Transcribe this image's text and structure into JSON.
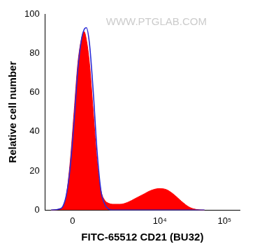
{
  "chart_data": {
    "type": "line",
    "x_label": "FITC-65512 CD21 (BU32)",
    "y_label": "Relative cell number",
    "annotations": [
      "WWW.PTGLAB.COM"
    ],
    "log": "x",
    "grid": false,
    "xlim": [
      -800,
      170000
    ],
    "xticks": [
      0,
      {
        "value": 10000,
        "label": "10⁴"
      },
      {
        "value": 100000,
        "label": "10⁵"
      }
    ],
    "ylim": [
      0,
      100
    ],
    "yticks": [
      0,
      20,
      40,
      60,
      80,
      100
    ],
    "x": [
      -559,
      -310,
      -200,
      -119,
      -42,
      27,
      102,
      190,
      247,
      309,
      401,
      531,
      677,
      846,
      1038,
      1262,
      1513,
      2130,
      2934,
      4000,
      5375,
      7180,
      9800,
      12620,
      16650,
      21900,
      29000,
      37800,
      49500
    ],
    "series": [
      {
        "type": "area",
        "color": "#ff0000",
        "values": [
          0,
          0.5,
          2,
          8,
          25,
          50,
          75,
          88,
          91,
          87,
          75,
          50,
          25,
          10,
          5,
          3.5,
          3,
          3,
          4,
          6,
          8,
          10,
          11,
          10.5,
          8,
          4.5,
          1.5,
          0.3,
          0
        ]
      },
      {
        "type": "line",
        "color": "#2b2bd6",
        "values": [
          0,
          0.5,
          2,
          8,
          22,
          45,
          72,
          88,
          92,
          93,
          85,
          60,
          30,
          10,
          3,
          0.5,
          0,
          0,
          0,
          0,
          0,
          0,
          0,
          0,
          0,
          0,
          0,
          0,
          0
        ]
      }
    ]
  }
}
